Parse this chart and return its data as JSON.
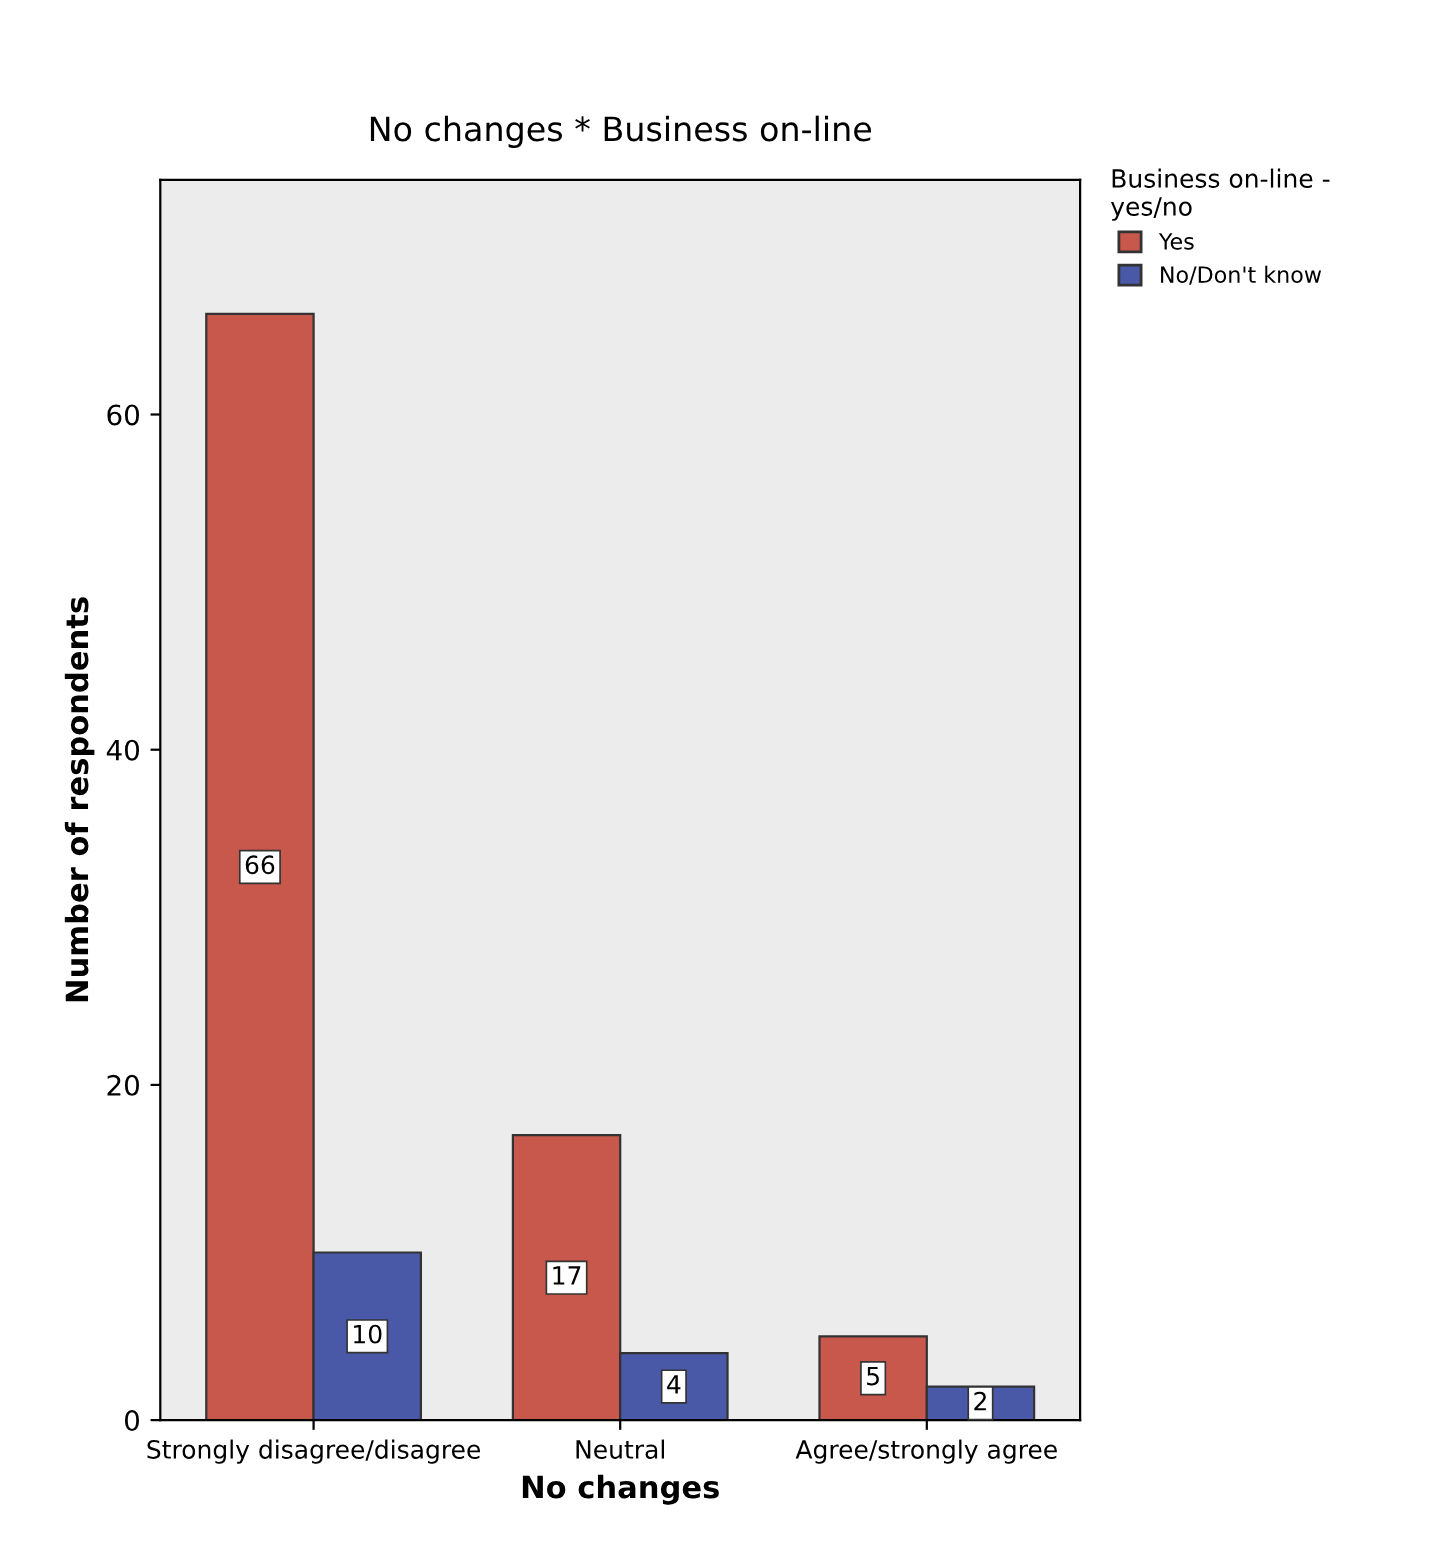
{
  "chart_data": {
    "type": "bar",
    "title": "No changes * Business on-line",
    "xlabel": "No changes",
    "ylabel": "Number of respondents",
    "legend_title": "Business on-line -\nyes/no",
    "categories": [
      "Strongly disagree/disagree",
      "Neutral",
      "Agree/strongly agree"
    ],
    "series": [
      {
        "name": "Yes",
        "color": "#c9584c",
        "values": [
          66,
          17,
          5
        ]
      },
      {
        "name": "No/Don't know",
        "color": "#4a58a8",
        "values": [
          10,
          4,
          2
        ]
      }
    ],
    "ylim": [
      0,
      74
    ],
    "yticks": [
      0,
      20,
      40,
      60
    ],
    "grid": false,
    "legend": "top right",
    "data_labels": true
  }
}
